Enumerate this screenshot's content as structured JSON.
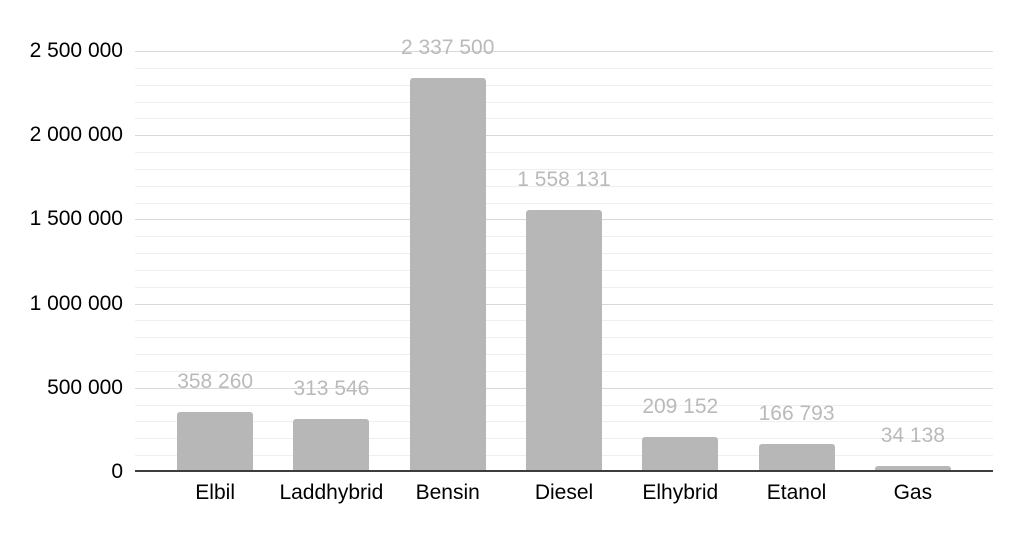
{
  "chart_data": {
    "type": "bar",
    "title": "",
    "xlabel": "",
    "ylabel": "",
    "categories": [
      "Elbil",
      "Laddhybrid",
      "Bensin",
      "Diesel",
      "Elhybrid",
      "Etanol",
      "Gas"
    ],
    "values": [
      358260,
      313546,
      2337500,
      1558131,
      209152,
      166793,
      34138
    ],
    "value_labels": [
      "358 260",
      "313 546",
      "2 337 500",
      "1 558 131",
      "209 152",
      "166 793",
      "34 138"
    ],
    "y_ticks": [
      {
        "value": 0,
        "label": "0"
      },
      {
        "value": 500000,
        "label": "500 000"
      },
      {
        "value": 1000000,
        "label": "1 000 000"
      },
      {
        "value": 1500000,
        "label": "1 500 000"
      },
      {
        "value": 2000000,
        "label": "2 000 000"
      },
      {
        "value": 2500000,
        "label": "2 500 000"
      }
    ],
    "ylim": [
      0,
      2500000
    ],
    "minor_grid_step": 100000,
    "major_grid_step": 500000,
    "grid": true,
    "legend_position": "none",
    "colors": {
      "background": "#ffffff",
      "bar": "#b7b7b7",
      "data_label": "#bababa",
      "axis_text": "#000000",
      "minor_gridline": "#efefef",
      "major_gridline": "#d9d9d9",
      "baseline": "#3d3d3d"
    }
  }
}
